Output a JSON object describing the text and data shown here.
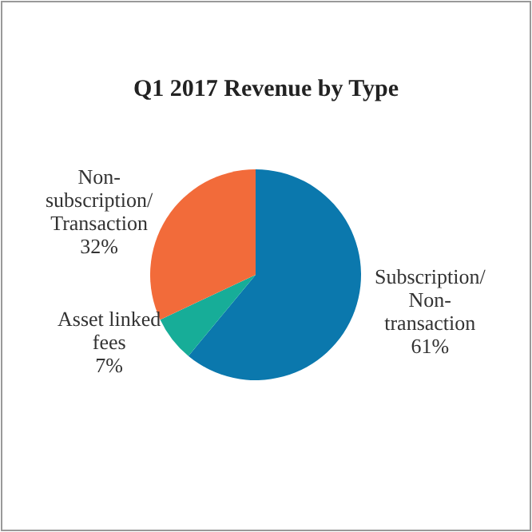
{
  "chart_data": {
    "type": "pie",
    "title": "Q1 2017 Revenue by Type",
    "categories": [
      "Subscription/Non-transaction",
      "Asset linked fees",
      "Non-subscription/Transaction"
    ],
    "values": [
      61,
      7,
      32
    ],
    "colors": [
      "#0b78ad",
      "#17ad98",
      "#f26b3a"
    ],
    "value_labels": [
      "61%",
      "7%",
      "32%"
    ]
  }
}
